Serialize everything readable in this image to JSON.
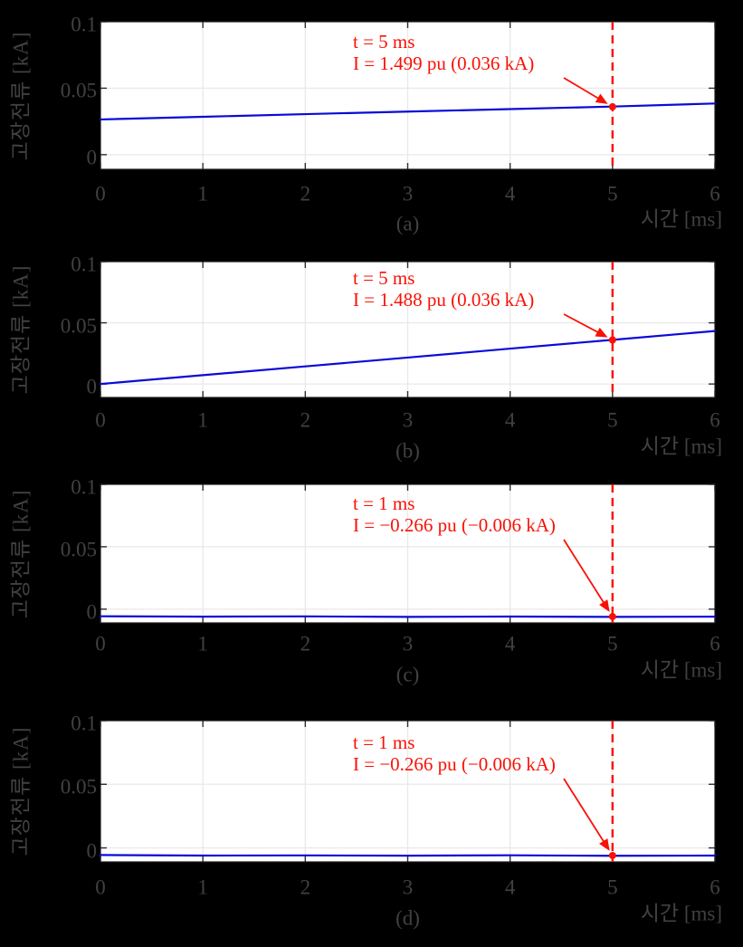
{
  "figure": {
    "background": "#000000",
    "description_labels": [
      "(a)",
      "(b)",
      "(c)",
      "(d)"
    ]
  },
  "colors": {
    "background": "#000000",
    "plot_background": "#ffffff",
    "grid": "#e9e9e9",
    "axis_text": "#414141",
    "tick": "#2e2e2e",
    "box_border": "#1c1c1c",
    "series_blue": "#0a0ad8",
    "annotation_red": "#fa1005"
  },
  "chart_data": [
    {
      "type": "line",
      "caption": "(a)",
      "xlabel": "시간 [ms]",
      "ylabel": "고장전류 [kA]",
      "xlim": [
        0,
        6
      ],
      "ylim": [
        -0.011,
        0.1
      ],
      "xticks": [
        0,
        1,
        2,
        3,
        4,
        5,
        6
      ],
      "xtick_labels": [
        "0",
        "1",
        "2",
        "3",
        "4",
        "5",
        "6"
      ],
      "yticks": [
        0,
        0.05,
        0.1
      ],
      "ytick_labels": [
        "0",
        "0.05",
        "0.1"
      ],
      "grid": true,
      "series": [
        {
          "name": "fault-current",
          "color": "#0a0ad8",
          "x": [
            0,
            1,
            2,
            3,
            4,
            5,
            6
          ],
          "y": [
            0.0265,
            0.0285,
            0.0305,
            0.0324,
            0.0343,
            0.0362,
            0.0385
          ]
        }
      ],
      "cursor": {
        "x": 5,
        "y": 0.036,
        "style": "dashed"
      },
      "annotation": {
        "line1": "t = 5 ms",
        "line2": "I = 1.499 pu (0.036 kA)"
      }
    },
    {
      "type": "line",
      "caption": "(b)",
      "xlabel": "시간 [ms]",
      "ylabel": "고장전류 [kA]",
      "xlim": [
        0,
        6
      ],
      "ylim": [
        -0.011,
        0.1
      ],
      "xticks": [
        0,
        1,
        2,
        3,
        4,
        5,
        6
      ],
      "xtick_labels": [
        "0",
        "1",
        "2",
        "3",
        "4",
        "5",
        "6"
      ],
      "yticks": [
        0,
        0.05,
        0.1
      ],
      "ytick_labels": [
        "0",
        "0.05",
        "0.1"
      ],
      "grid": true,
      "series": [
        {
          "name": "fault-current",
          "color": "#0a0ad8",
          "x": [
            0,
            1,
            2,
            3,
            4,
            5,
            6
          ],
          "y": [
            0.0,
            0.0072,
            0.0144,
            0.0216,
            0.0289,
            0.0361,
            0.0433
          ]
        }
      ],
      "cursor": {
        "x": 5,
        "y": 0.036,
        "style": "dashed"
      },
      "annotation": {
        "line1": "t = 5 ms",
        "line2": "I = 1.488 pu (0.036 kA)"
      }
    },
    {
      "type": "line",
      "caption": "(c)",
      "xlabel": "시간 [ms]",
      "ylabel": "고장전류 [kA]",
      "xlim": [
        0,
        6
      ],
      "ylim": [
        -0.011,
        0.1
      ],
      "xticks": [
        0,
        1,
        2,
        3,
        4,
        5,
        6
      ],
      "xtick_labels": [
        "0",
        "1",
        "2",
        "3",
        "4",
        "5",
        "6"
      ],
      "yticks": [
        0,
        0.05,
        0.1
      ],
      "ytick_labels": [
        "0",
        "0.05",
        "0.1"
      ],
      "grid": true,
      "series": [
        {
          "name": "fault-current",
          "color": "#0a0ad8",
          "x": [
            0,
            1,
            2,
            3,
            4,
            5,
            6
          ],
          "y": [
            -0.0057,
            -0.006,
            -0.0058,
            -0.0062,
            -0.0059,
            -0.0062,
            -0.006
          ]
        }
      ],
      "cursor": {
        "x": 5,
        "y": -0.006,
        "style": "dashed"
      },
      "annotation": {
        "line1": "t = 1 ms",
        "line2": "I = −0.266 pu (−0.006 kA)"
      }
    },
    {
      "type": "line",
      "caption": "(d)",
      "xlabel": "시간 [ms]",
      "ylabel": "고장전류 [kA]",
      "xlim": [
        0,
        6
      ],
      "ylim": [
        -0.011,
        0.1
      ],
      "xticks": [
        0,
        1,
        2,
        3,
        4,
        5,
        6
      ],
      "xtick_labels": [
        "0",
        "1",
        "2",
        "3",
        "4",
        "5",
        "6"
      ],
      "yticks": [
        0,
        0.05,
        0.1
      ],
      "ytick_labels": [
        "0",
        "0.05",
        "0.1"
      ],
      "grid": true,
      "series": [
        {
          "name": "fault-current",
          "color": "#0a0ad8",
          "x": [
            0,
            1,
            2,
            3,
            4,
            5,
            6
          ],
          "y": [
            -0.0056,
            -0.006,
            -0.0059,
            -0.0061,
            -0.0058,
            -0.0062,
            -0.006
          ]
        }
      ],
      "cursor": {
        "x": 5,
        "y": -0.006,
        "style": "dashed"
      },
      "annotation": {
        "line1": "t = 1 ms",
        "line2": "I = −0.266 pu (−0.006 kA)"
      }
    }
  ]
}
